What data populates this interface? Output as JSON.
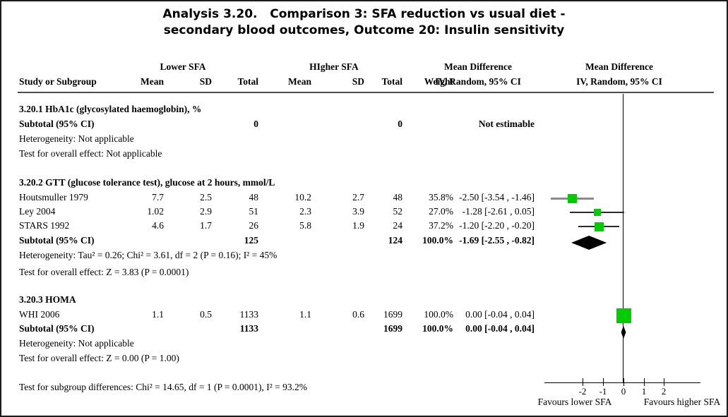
{
  "title": {
    "line1": "Analysis 3.20.   Comparison 3: SFA reduction vs usual diet -",
    "line2": "secondary blood outcomes, Outcome 20: Insulin sensitivity"
  },
  "header": {
    "group1": "Lower SFA",
    "group2": "HIgher SFA",
    "col_study": "Study or Subgroup",
    "col_mean": "Mean",
    "col_sd": "SD",
    "col_total": "Total",
    "col_weight": "Weight",
    "md_label": "Mean Difference",
    "model_label": "IV, Random, 95% CI"
  },
  "sections": [
    {
      "heading": "3.20.1 HbA1c (glycosylated haemoglobin), %",
      "studies": [],
      "subtotal": {
        "label": "Subtotal (95% CI)",
        "total1": "0",
        "total2": "0",
        "weight": "",
        "ci": "Not estimable"
      },
      "heterogeneity": "Heterogeneity: Not applicable",
      "overall_effect": "Test for overall effect: Not applicable"
    },
    {
      "heading": "3.20.2 GTT (glucose tolerance test), glucose at 2 hours, mmol/L",
      "studies": [
        {
          "label": "Houtsmuller 1979",
          "mean1": "7.7",
          "sd1": "2.5",
          "total1": "48",
          "mean2": "10.2",
          "sd2": "2.7",
          "total2": "48",
          "weight": "35.8%",
          "ci": "-2.50 [-3.54 , -1.46]"
        },
        {
          "label": "Ley 2004",
          "mean1": "1.02",
          "sd1": "2.9",
          "total1": "51",
          "mean2": "2.3",
          "sd2": "3.9",
          "total2": "52",
          "weight": "27.0%",
          "ci": "-1.28 [-2.61 , 0.05]"
        },
        {
          "label": "STARS 1992",
          "mean1": "4.6",
          "sd1": "1.7",
          "total1": "26",
          "mean2": "5.8",
          "sd2": "1.9",
          "total2": "24",
          "weight": "37.2%",
          "ci": "-1.20 [-2.20 , -0.20]"
        }
      ],
      "subtotal": {
        "label": "Subtotal (95% CI)",
        "total1": "125",
        "total2": "124",
        "weight": "100.0%",
        "ci": "-1.69 [-2.55 , -0.82]"
      },
      "heterogeneity": "Heterogeneity: Tau² = 0.26; Chi² = 3.61, df = 2 (P = 0.16); I² = 45%",
      "overall_effect": "Test for overall effect: Z = 3.83 (P = 0.0001)"
    },
    {
      "heading": "3.20.3 HOMA",
      "studies": [
        {
          "label": "WHI 2006",
          "mean1": "1.1",
          "sd1": "0.5",
          "total1": "1133",
          "mean2": "1.1",
          "sd2": "0.6",
          "total2": "1699",
          "weight": "100.0%",
          "ci": "0.00 [-0.04 , 0.04]"
        }
      ],
      "subtotal": {
        "label": "Subtotal (95% CI)",
        "total1": "1133",
        "total2": "1699",
        "weight": "100.0%",
        "ci": "0.00 [-0.04 , 0.04]"
      },
      "heterogeneity": "Heterogeneity: Not applicable",
      "overall_effect": "Test for overall effect: Z = 0.00 (P = 1.00)"
    }
  ],
  "footer": {
    "subgroup_test": "Test for subgroup differences: Chi² = 14.65, df = 1 (P = 0.0001), I² = 93.2%"
  },
  "axis": {
    "ticks": [
      "-2",
      "-1",
      "0",
      "1",
      "2"
    ],
    "favours_left": "Favours lower SFA",
    "favours_right": "Favours higher SFA"
  },
  "colors": {
    "marker_green": "#00cc00",
    "diamond_black": "#000000",
    "ci_line_light": "#8a8a8a",
    "ci_line_dark": "#2b2b2b"
  },
  "chart_data": {
    "type": "scatter",
    "variant": "forest_plot",
    "title": "Analysis 3.20. Comparison 3: SFA reduction vs usual diet - secondary blood outcomes, Outcome 20: Insulin sensitivity",
    "effect_measure": "Mean Difference, IV, Random, 95% CI",
    "x_axis": {
      "tick_values": [
        -2,
        -1,
        0,
        1,
        2
      ],
      "zero_line": 0,
      "range_shown": [
        -3.8,
        3.8
      ],
      "label_left": "Favours lower SFA",
      "label_right": "Favours higher SFA"
    },
    "subgroups": [
      {
        "name": "3.20.1 HbA1c (glycosylated haemoglobin), %",
        "studies": [],
        "subtotal": null,
        "subtotal_note": "Not estimable"
      },
      {
        "name": "3.20.2 GTT (glucose tolerance test), glucose at 2 hours, mmol/L",
        "studies": [
          {
            "study": "Houtsmuller 1979",
            "est": -2.5,
            "lo": -3.54,
            "hi": -1.46,
            "weight_pct": 35.8
          },
          {
            "study": "Ley 2004",
            "est": -1.28,
            "lo": -2.61,
            "hi": 0.05,
            "weight_pct": 27.0
          },
          {
            "study": "STARS 1992",
            "est": -1.2,
            "lo": -2.2,
            "hi": -0.2,
            "weight_pct": 37.2
          }
        ],
        "subtotal": {
          "est": -1.69,
          "lo": -2.55,
          "hi": -0.82
        }
      },
      {
        "name": "3.20.3 HOMA",
        "studies": [
          {
            "study": "WHI 2006",
            "est": 0.0,
            "lo": -0.04,
            "hi": 0.04,
            "weight_pct": 100.0
          }
        ],
        "subtotal": {
          "est": 0.0,
          "lo": -0.04,
          "hi": 0.04
        }
      }
    ]
  }
}
